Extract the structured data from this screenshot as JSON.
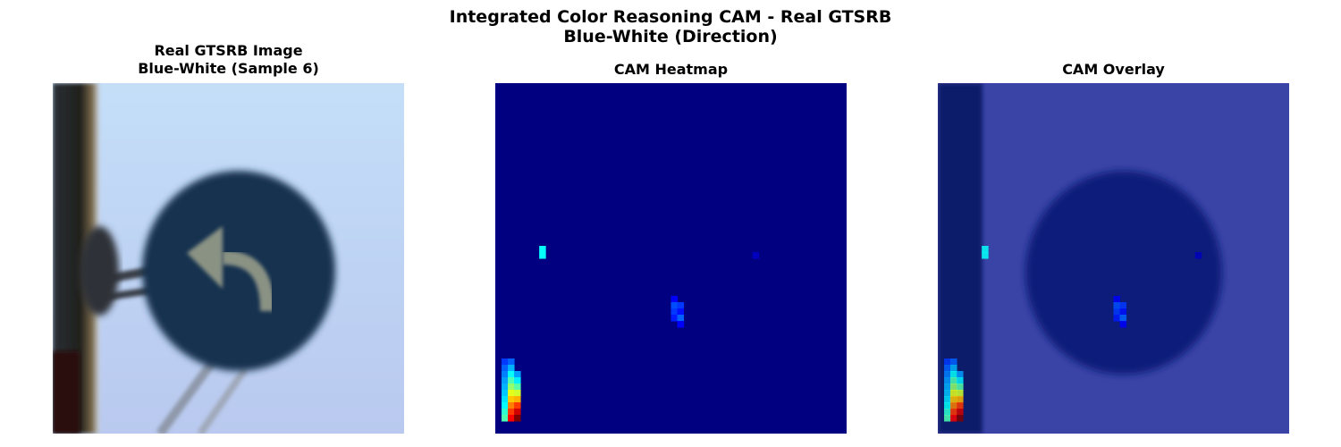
{
  "figure": {
    "title_line1": "Integrated Color Reasoning CAM - Real GTSRB",
    "title_line2": "Blue-White (Direction)"
  },
  "panels": [
    {
      "title_line1": "Real GTSRB Image",
      "title_line2": "Blue-White (Sample 6)",
      "content": "photo",
      "icon": "turn-left-arrow-sign"
    },
    {
      "title": "CAM Heatmap",
      "content": "heatmap",
      "colormap": "jet"
    },
    {
      "title": "CAM Overlay",
      "content": "overlay",
      "colormap": "jet"
    }
  ],
  "chart_data": {
    "type": "heatmap",
    "colormap": "jet",
    "grid": false,
    "axes": "off",
    "value_range": [
      0,
      1
    ],
    "background_value": 0.0,
    "hotspots": [
      {
        "col": 1,
        "row": 44,
        "value": 0.18
      },
      {
        "col": 1,
        "row": 45,
        "value": 0.22
      },
      {
        "col": 1,
        "row": 46,
        "value": 0.25
      },
      {
        "col": 1,
        "row": 47,
        "value": 0.28
      },
      {
        "col": 1,
        "row": 48,
        "value": 0.3
      },
      {
        "col": 1,
        "row": 49,
        "value": 0.32
      },
      {
        "col": 1,
        "row": 50,
        "value": 0.35
      },
      {
        "col": 1,
        "row": 51,
        "value": 0.38
      },
      {
        "col": 1,
        "row": 52,
        "value": 0.42
      },
      {
        "col": 1,
        "row": 53,
        "value": 0.45
      },
      {
        "col": 2,
        "row": 44,
        "value": 0.22
      },
      {
        "col": 2,
        "row": 45,
        "value": 0.3
      },
      {
        "col": 2,
        "row": 46,
        "value": 0.38
      },
      {
        "col": 2,
        "row": 47,
        "value": 0.45
      },
      {
        "col": 2,
        "row": 48,
        "value": 0.52
      },
      {
        "col": 2,
        "row": 49,
        "value": 0.6
      },
      {
        "col": 2,
        "row": 50,
        "value": 0.68
      },
      {
        "col": 2,
        "row": 51,
        "value": 0.75
      },
      {
        "col": 2,
        "row": 52,
        "value": 0.82
      },
      {
        "col": 2,
        "row": 53,
        "value": 0.88
      },
      {
        "col": 3,
        "row": 46,
        "value": 0.28
      },
      {
        "col": 3,
        "row": 47,
        "value": 0.36
      },
      {
        "col": 3,
        "row": 48,
        "value": 0.46
      },
      {
        "col": 3,
        "row": 49,
        "value": 0.58
      },
      {
        "col": 3,
        "row": 50,
        "value": 0.7
      },
      {
        "col": 3,
        "row": 51,
        "value": 0.82
      },
      {
        "col": 3,
        "row": 52,
        "value": 0.92
      },
      {
        "col": 3,
        "row": 53,
        "value": 1.0
      },
      {
        "col": 7,
        "row": 26,
        "value": 0.38
      },
      {
        "col": 7,
        "row": 27,
        "value": 0.38
      },
      {
        "col": 28,
        "row": 34,
        "value": 0.12
      },
      {
        "col": 28,
        "row": 35,
        "value": 0.2
      },
      {
        "col": 28,
        "row": 36,
        "value": 0.18
      },
      {
        "col": 28,
        "row": 37,
        "value": 0.15
      },
      {
        "col": 29,
        "row": 35,
        "value": 0.18
      },
      {
        "col": 29,
        "row": 36,
        "value": 0.14
      },
      {
        "col": 29,
        "row": 37,
        "value": 0.22
      },
      {
        "col": 29,
        "row": 38,
        "value": 0.12
      },
      {
        "col": 41,
        "row": 27,
        "value": 0.06
      }
    ]
  }
}
